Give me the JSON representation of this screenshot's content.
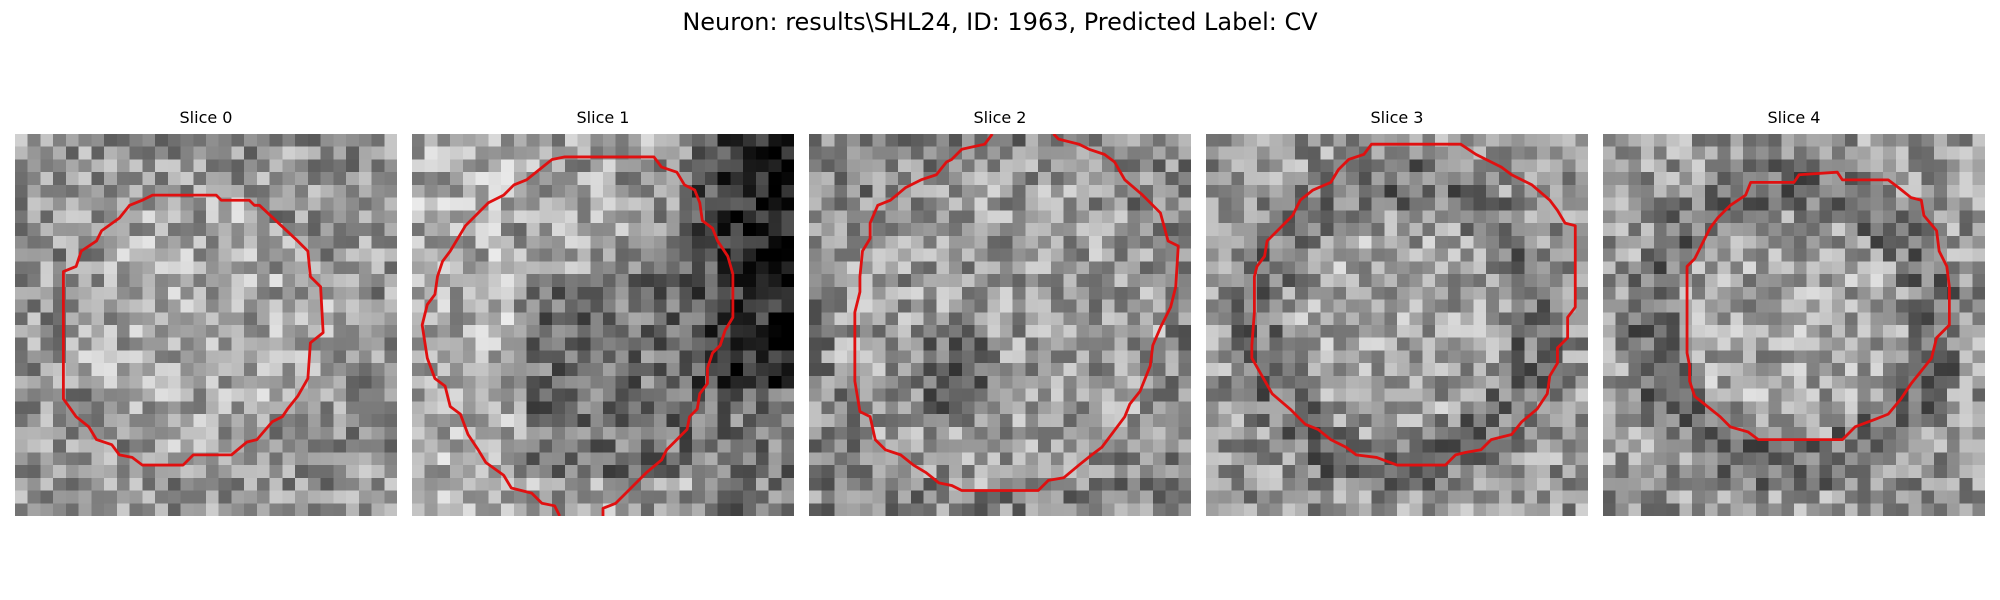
{
  "figure": {
    "title": "Neuron: results\\SHL24, ID: 1963, Predicted Label: CV"
  },
  "overlay_color": "#e01010",
  "slices": [
    {
      "title": "Slice 0",
      "profile": "bright-center"
    },
    {
      "title": "Slice 1",
      "profile": "dark-right"
    },
    {
      "title": "Slice 2",
      "profile": "dark-spot"
    },
    {
      "title": "Slice 3",
      "profile": "dark-ring"
    },
    {
      "title": "Slice 4",
      "profile": "dark-ring"
    }
  ]
}
